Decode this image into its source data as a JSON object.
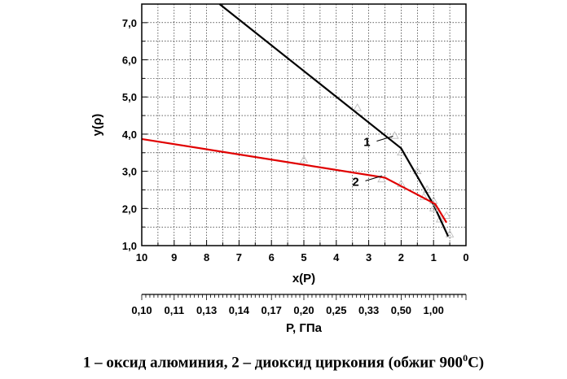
{
  "chart_data": {
    "type": "line",
    "xlabel": "x(P)",
    "ylabel": "y(ρ)",
    "x_reversed": true,
    "xlim": [
      10,
      0
    ],
    "ylim": [
      1.0,
      7.5
    ],
    "x_ticks": [
      "10",
      "9",
      "8",
      "7",
      "6",
      "5",
      "4",
      "3",
      "2",
      "1",
      "0"
    ],
    "y_ticks": [
      "1,0",
      "2,0",
      "3,0",
      "4,0",
      "5,0",
      "6,0",
      "7,0"
    ],
    "grid": true,
    "secondary_axis": {
      "label": "P, ГПа",
      "ticks": [
        {
          "label": "0,10",
          "x": 10
        },
        {
          "label": "0,11",
          "x": 9
        },
        {
          "label": "0,13",
          "x": 8
        },
        {
          "label": "0,14",
          "x": 7
        },
        {
          "label": "0,17",
          "x": 6
        },
        {
          "label": "0,20",
          "x": 5
        },
        {
          "label": "0,25",
          "x": 4
        },
        {
          "label": "0,33",
          "x": 3
        },
        {
          "label": "0,50",
          "x": 2
        },
        {
          "label": "1,00",
          "x": 1
        }
      ]
    },
    "series": [
      {
        "name": "1",
        "color": "#000000",
        "line": [
          [
            7.6,
            7.5
          ],
          [
            2.0,
            3.62
          ],
          [
            1.0,
            2.1
          ],
          [
            0.55,
            1.25
          ]
        ],
        "points": [
          [
            3.35,
            4.7
          ],
          [
            2.2,
            3.95
          ],
          [
            2.0,
            3.5
          ],
          [
            1.5,
            3.0
          ],
          [
            1.2,
            2.5
          ],
          [
            1.0,
            2.2
          ],
          [
            0.8,
            1.7
          ],
          [
            0.5,
            1.3
          ]
        ],
        "label_anchor": [
          2.2,
          3.9
        ]
      },
      {
        "name": "2",
        "color": "#e00000",
        "line": [
          [
            10.0,
            3.87
          ],
          [
            2.5,
            2.83
          ],
          [
            0.95,
            2.12
          ],
          [
            0.6,
            1.62
          ]
        ],
        "points": [
          [
            5.0,
            3.3
          ],
          [
            2.6,
            2.78
          ],
          [
            2.0,
            2.65
          ],
          [
            1.3,
            2.3
          ],
          [
            1.0,
            2.0
          ],
          [
            0.6,
            1.8
          ]
        ],
        "label_anchor": [
          2.55,
          2.83
        ]
      }
    ],
    "caption_main": "1 – оксид алюминия, 2 – диоксид циркония (обжиг 900",
    "caption_sup": "0",
    "caption_end": "С)"
  }
}
